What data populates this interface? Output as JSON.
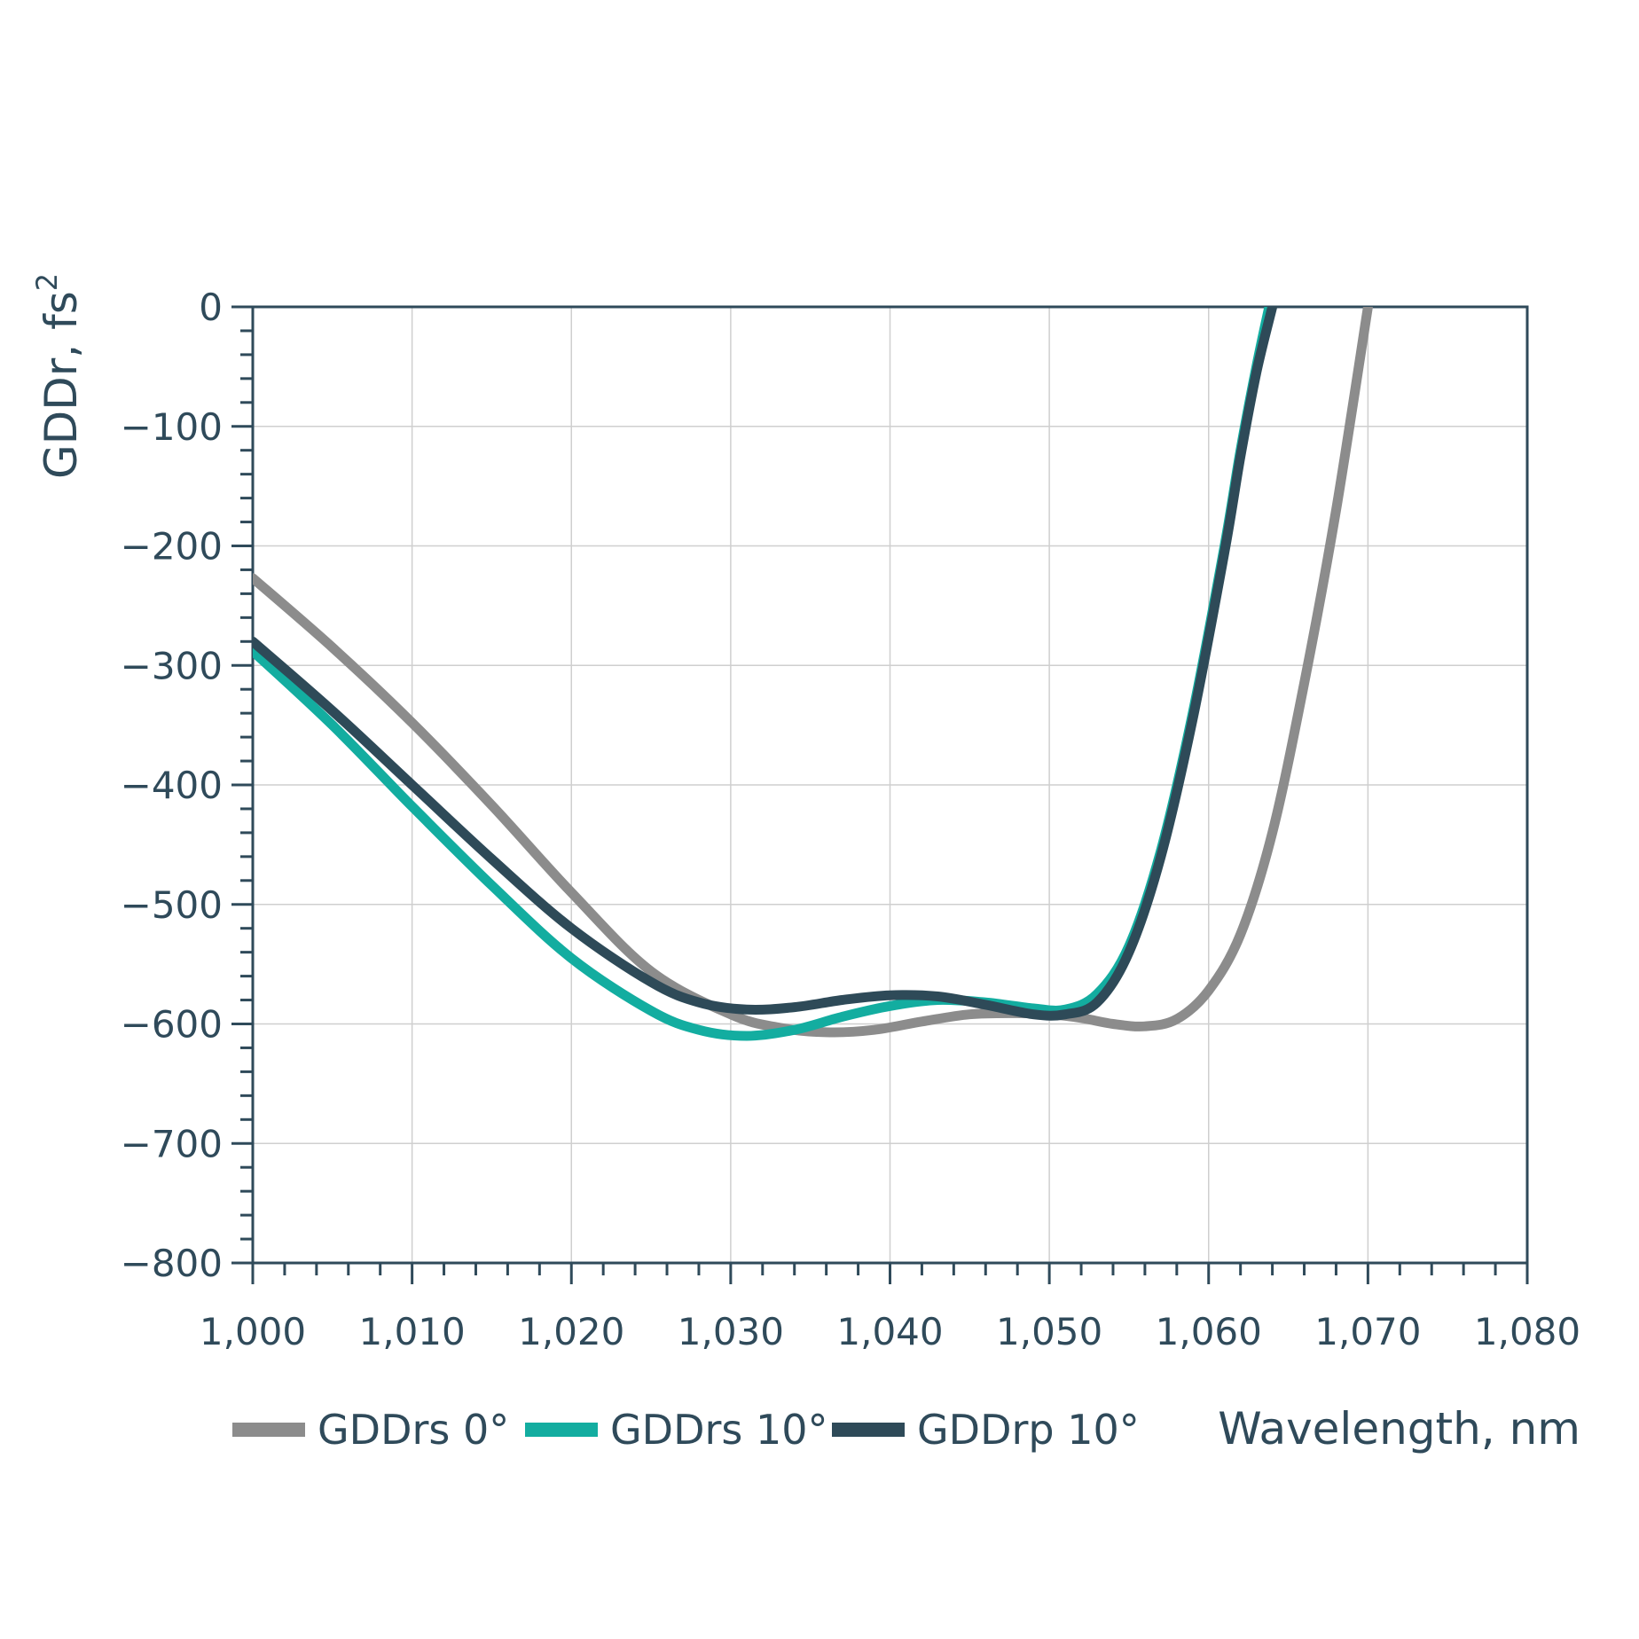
{
  "chart_data": {
    "type": "line",
    "xlabel": "Wavelength, nm",
    "ylabel": "GDDr, fs",
    "ylabel_superscript": "2",
    "xlim": [
      1000,
      1080
    ],
    "ylim": [
      -800,
      0
    ],
    "xticks": [
      1000,
      1010,
      1020,
      1030,
      1040,
      1050,
      1060,
      1070,
      1080
    ],
    "xtick_labels": [
      "1,000",
      "1,010",
      "1,020",
      "1,030",
      "1,040",
      "1,050",
      "1,060",
      "1,070",
      "1,080"
    ],
    "yticks": [
      0,
      -100,
      -200,
      -300,
      -400,
      -500,
      -600,
      -700,
      -800
    ],
    "ytick_labels": [
      "0",
      "−100",
      "−200",
      "−300",
      "−400",
      "−500",
      "−600",
      "−700",
      "−800"
    ],
    "grid": true,
    "legend_position": "bottom",
    "series": [
      {
        "name": "GDDrs 0°",
        "color": "#8c8c8c",
        "x": [
          1000,
          1005,
          1010,
          1015,
          1020,
          1025,
          1030,
          1033,
          1036,
          1039,
          1042,
          1045,
          1048,
          1050,
          1052,
          1054,
          1056,
          1058,
          1060,
          1062,
          1064,
          1066,
          1068,
          1070
        ],
        "y": [
          -227,
          -285,
          -348,
          -417,
          -490,
          -556,
          -592,
          -603,
          -607,
          -605,
          -598,
          -592,
          -591,
          -592,
          -595,
          -600,
          -602,
          -596,
          -572,
          -525,
          -440,
          -315,
          -170,
          0
        ]
      },
      {
        "name": "GDDrs 10°",
        "color": "#13ada0",
        "x": [
          1000,
          1005,
          1010,
          1015,
          1020,
          1025,
          1028,
          1031,
          1034,
          1037,
          1040,
          1043,
          1046,
          1049,
          1051,
          1053,
          1055,
          1057,
          1059,
          1061,
          1062,
          1063,
          1063.8
        ],
        "y": [
          -288,
          -350,
          -418,
          -484,
          -545,
          -589,
          -605,
          -610,
          -605,
          -594,
          -585,
          -580,
          -582,
          -587,
          -588,
          -575,
          -535,
          -455,
          -340,
          -200,
          -120,
          -50,
          0
        ]
      },
      {
        "name": "GDDrp 10°",
        "color": "#2e4a58",
        "x": [
          1000,
          1005,
          1010,
          1015,
          1020,
          1025,
          1028,
          1031,
          1034,
          1037,
          1040,
          1043,
          1046,
          1049,
          1051,
          1053,
          1055,
          1057,
          1059,
          1061,
          1062,
          1063,
          1064
        ],
        "y": [
          -280,
          -338,
          -400,
          -462,
          -520,
          -565,
          -582,
          -588,
          -586,
          -580,
          -576,
          -577,
          -584,
          -592,
          -592,
          -582,
          -540,
          -460,
          -345,
          -205,
          -125,
          -55,
          0
        ]
      }
    ]
  }
}
